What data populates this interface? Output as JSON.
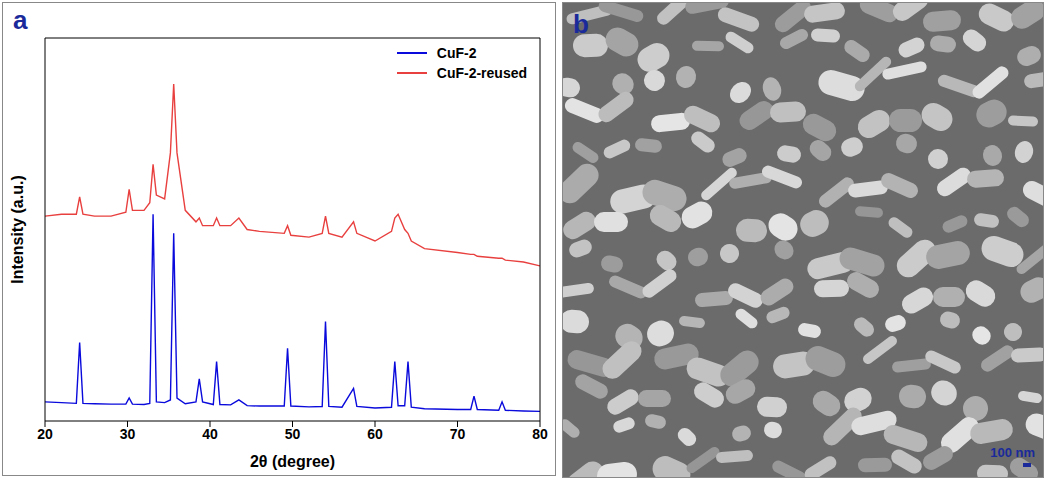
{
  "chart_data": {
    "type": "line",
    "panel_label": "a",
    "x_label": "2θ (degree)",
    "y_label": "Intensity (a.u.)",
    "xlim": [
      20,
      80
    ],
    "xticks": [
      20,
      30,
      40,
      50,
      60,
      70,
      80
    ],
    "ylim": [
      0,
      100
    ],
    "tick_labels": "x",
    "legend": "top-right",
    "x": [
      20,
      22,
      23.8,
      24.2,
      24.6,
      26,
      28,
      29.8,
      30.2,
      30.6,
      32,
      32.7,
      33.1,
      33.5,
      34.5,
      35.2,
      35.6,
      36.0,
      37,
      38.3,
      38.7,
      39.1,
      40.4,
      40.8,
      41.2,
      42.5,
      43.5,
      44.5,
      46,
      49.0,
      49.4,
      49.8,
      52,
      53.6,
      54.0,
      54.4,
      56,
      57.4,
      57.8,
      60,
      62.0,
      62.4,
      62.8,
      63.6,
      64.0,
      64.4,
      66,
      70,
      71.6,
      72.0,
      72.4,
      75.0,
      75.4,
      75.8,
      78,
      80
    ],
    "series": [
      {
        "name": "CuF-2",
        "color": "#0a0adc",
        "values": [
          5,
          4.8,
          4.6,
          20.5,
          4.6,
          4.5,
          4.4,
          4.4,
          6,
          4.4,
          4.3,
          4.6,
          54,
          5,
          4.8,
          5.5,
          49,
          6,
          4.5,
          5,
          11,
          5,
          4.3,
          15.5,
          4.3,
          4.2,
          5.5,
          4,
          3.9,
          3.9,
          19,
          3.9,
          3.7,
          3.8,
          26,
          3.8,
          3.6,
          8.5,
          3.8,
          3.4,
          3.6,
          15.5,
          4,
          4,
          15.5,
          3.6,
          3.2,
          3,
          3,
          6.5,
          3,
          2.8,
          5,
          2.8,
          2.6,
          2.5
        ]
      },
      {
        "name": "CuF-2-reused",
        "color": "#e8403f",
        "values": [
          53.5,
          54,
          54,
          58.5,
          54,
          53.5,
          53.5,
          54.5,
          60.5,
          55,
          55,
          57,
          67,
          59,
          58,
          70,
          88,
          70,
          55,
          52,
          53,
          51,
          51,
          53,
          51,
          51,
          53,
          50,
          49.5,
          49,
          51,
          48.5,
          48,
          49,
          53.5,
          49,
          48,
          52,
          49,
          47,
          49.5,
          53,
          54,
          50,
          49,
          47,
          45,
          44,
          43.5,
          43.5,
          43,
          42.5,
          42.5,
          42,
          41.5,
          40.5
        ]
      }
    ]
  },
  "image_panel": {
    "panel_label": "b",
    "scale_bar": "100 nm"
  }
}
